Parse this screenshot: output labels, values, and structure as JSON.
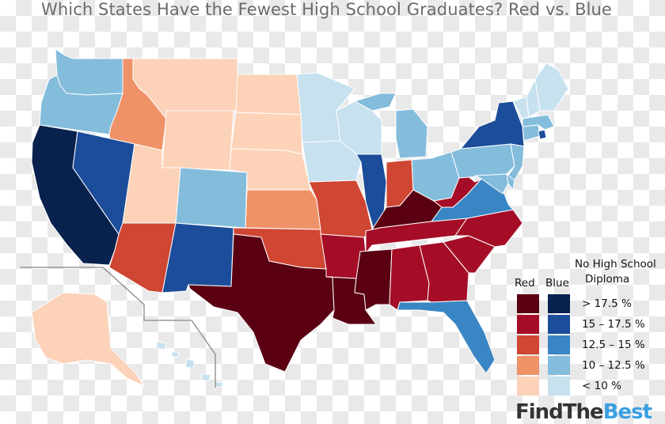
{
  "title": "Which States Have the Fewest High School Graduates? Red vs. Blue",
  "legend": {
    "red_header": "Red",
    "blue_header": "Blue",
    "measure_title_line1": "No High School",
    "measure_title_line2": "Diploma",
    "classes": [
      {
        "label": "> 17.5 %",
        "red": "#5a0012",
        "blue": "#08224d"
      },
      {
        "label": "15 – 17.5 %",
        "red": "#a50d27",
        "blue": "#1c4d9a"
      },
      {
        "label": "12.5 – 15 %",
        "red": "#cf4633",
        "blue": "#3a86c4"
      },
      {
        "label": "10 – 12.5 %",
        "red": "#ef9267",
        "blue": "#84bcdc"
      },
      {
        "label": "< 10 %",
        "red": "#fcd2b8",
        "blue": "#c7e1ef"
      }
    ]
  },
  "brand": {
    "part1": "FindThe",
    "part2": "Best"
  },
  "states": {
    "CA": {
      "party": "blue",
      "class": 0
    },
    "TX": {
      "party": "red",
      "class": 0
    },
    "LA": {
      "party": "red",
      "class": 0
    },
    "MS": {
      "party": "red",
      "class": 0
    },
    "KY": {
      "party": "red",
      "class": 0
    },
    "NY": {
      "party": "blue",
      "class": 1
    },
    "NM": {
      "party": "blue",
      "class": 1
    },
    "NV": {
      "party": "blue",
      "class": 1
    },
    "IL": {
      "party": "blue",
      "class": 1
    },
    "RI": {
      "party": "blue",
      "class": 1
    },
    "AL": {
      "party": "red",
      "class": 1
    },
    "GA": {
      "party": "red",
      "class": 1
    },
    "SC": {
      "party": "red",
      "class": 1
    },
    "NC": {
      "party": "red",
      "class": 1
    },
    "TN": {
      "party": "red",
      "class": 1
    },
    "AR": {
      "party": "red",
      "class": 1
    },
    "WV": {
      "party": "red",
      "class": 1
    },
    "AZ": {
      "party": "red",
      "class": 2
    },
    "MO": {
      "party": "red",
      "class": 2
    },
    "OK": {
      "party": "red",
      "class": 2
    },
    "IN": {
      "party": "red",
      "class": 2
    },
    "FL": {
      "party": "blue",
      "class": 2
    },
    "VA": {
      "party": "blue",
      "class": 2
    },
    "ID": {
      "party": "red",
      "class": 3
    },
    "KS": {
      "party": "red",
      "class": 3
    },
    "WA": {
      "party": "blue",
      "class": 3
    },
    "OR": {
      "party": "blue",
      "class": 3
    },
    "CO": {
      "party": "blue",
      "class": 3
    },
    "MI": {
      "party": "blue",
      "class": 3
    },
    "OH": {
      "party": "blue",
      "class": 3
    },
    "PA": {
      "party": "blue",
      "class": 3
    },
    "NJ": {
      "party": "blue",
      "class": 3
    },
    "MD": {
      "party": "blue",
      "class": 3
    },
    "DE": {
      "party": "blue",
      "class": 3
    },
    "CT": {
      "party": "blue",
      "class": 3
    },
    "MA": {
      "party": "blue",
      "class": 3
    },
    "MT": {
      "party": "red",
      "class": 4
    },
    "WY": {
      "party": "red",
      "class": 4
    },
    "UT": {
      "party": "red",
      "class": 4
    },
    "ND": {
      "party": "red",
      "class": 4
    },
    "SD": {
      "party": "red",
      "class": 4
    },
    "NE": {
      "party": "red",
      "class": 4
    },
    "AK": {
      "party": "red",
      "class": 4
    },
    "MN": {
      "party": "blue",
      "class": 4
    },
    "WI": {
      "party": "blue",
      "class": 4
    },
    "IA": {
      "party": "blue",
      "class": 4
    },
    "ME": {
      "party": "blue",
      "class": 4
    },
    "VT": {
      "party": "blue",
      "class": 4
    },
    "NH": {
      "party": "blue",
      "class": 4
    },
    "HI": {
      "party": "blue",
      "class": 4
    }
  }
}
